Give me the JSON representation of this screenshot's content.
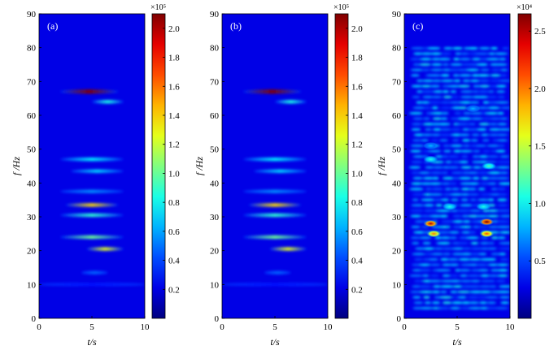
{
  "chart_data": [
    {
      "type": "heatmap",
      "panel_label": "(a)",
      "xlabel": "t/s",
      "ylabel": "f /Hz",
      "xlim": [
        0,
        10
      ],
      "ylim": [
        0,
        90
      ],
      "xticks": [
        "0",
        "5",
        "10"
      ],
      "yticks": [
        "0",
        "10",
        "20",
        "30",
        "40",
        "50",
        "60",
        "70",
        "80",
        "90"
      ],
      "colormap": "jet",
      "colorbar": {
        "multiplier": "×10⁵",
        "ticks": [
          "0.2",
          "0.4",
          "0.6",
          "0.8",
          "1.0",
          "1.2",
          "1.4",
          "1.6",
          "1.8",
          "2.0"
        ],
        "range": [
          0,
          2.1
        ]
      },
      "ridges": [
        {
          "freq": 10,
          "t_start": 0,
          "t_end": 10,
          "level": 0.14
        },
        {
          "freq": 13.5,
          "t_start": 4,
          "t_end": 6.5,
          "level": 0.22
        },
        {
          "freq": 20.5,
          "t_start": 4.5,
          "t_end": 8,
          "level": 0.6
        },
        {
          "freq": 24,
          "t_start": 2,
          "t_end": 8,
          "level": 0.48
        },
        {
          "freq": 30.5,
          "t_start": 2,
          "t_end": 8,
          "level": 0.42
        },
        {
          "freq": 33.5,
          "t_start": 2.5,
          "t_end": 7.5,
          "level": 0.66
        },
        {
          "freq": 37.5,
          "t_start": 2,
          "t_end": 8,
          "level": 0.26
        },
        {
          "freq": 43.5,
          "t_start": 3,
          "t_end": 8,
          "level": 0.33
        },
        {
          "freq": 47,
          "t_start": 2,
          "t_end": 8,
          "level": 0.36
        },
        {
          "freq": 64,
          "t_start": 5,
          "t_end": 8,
          "level": 0.4
        },
        {
          "freq": 67,
          "t_start": 2,
          "t_end": 7.5,
          "level": 1.0
        }
      ]
    },
    {
      "type": "heatmap",
      "panel_label": "(b)",
      "xlabel": "t/s",
      "ylabel": "f /Hz",
      "xlim": [
        0,
        10
      ],
      "ylim": [
        0,
        90
      ],
      "xticks": [
        "0",
        "5",
        "10"
      ],
      "yticks": [
        "0",
        "10",
        "20",
        "30",
        "40",
        "50",
        "60",
        "70",
        "80",
        "90"
      ],
      "colormap": "jet",
      "colorbar": {
        "multiplier": "×10⁵",
        "ticks": [
          "0.2",
          "0.4",
          "0.6",
          "0.8",
          "1.0",
          "1.2",
          "1.4",
          "1.6",
          "1.8",
          "2.0"
        ],
        "range": [
          0,
          2.1
        ]
      },
      "ridges": [
        {
          "freq": 10,
          "t_start": 0,
          "t_end": 10,
          "level": 0.14
        },
        {
          "freq": 13.5,
          "t_start": 4,
          "t_end": 6.5,
          "level": 0.22
        },
        {
          "freq": 20.5,
          "t_start": 4.5,
          "t_end": 8,
          "level": 0.6
        },
        {
          "freq": 24,
          "t_start": 2,
          "t_end": 8,
          "level": 0.48
        },
        {
          "freq": 30.5,
          "t_start": 2,
          "t_end": 8,
          "level": 0.42
        },
        {
          "freq": 33.5,
          "t_start": 2.5,
          "t_end": 7.5,
          "level": 0.66
        },
        {
          "freq": 37.5,
          "t_start": 2,
          "t_end": 8,
          "level": 0.26
        },
        {
          "freq": 43.5,
          "t_start": 3,
          "t_end": 8,
          "level": 0.33
        },
        {
          "freq": 47,
          "t_start": 2,
          "t_end": 8,
          "level": 0.36
        },
        {
          "freq": 64,
          "t_start": 5,
          "t_end": 8,
          "level": 0.4
        },
        {
          "freq": 67,
          "t_start": 2,
          "t_end": 7.5,
          "level": 1.0
        }
      ]
    },
    {
      "type": "heatmap",
      "panel_label": "(c)",
      "xlabel": "t/s",
      "ylabel": "f /Hz",
      "xlim": [
        0,
        10
      ],
      "ylim": [
        0,
        90
      ],
      "xticks": [
        "0",
        "5",
        "10"
      ],
      "yticks": [
        "0",
        "10",
        "20",
        "30",
        "40",
        "50",
        "60",
        "70",
        "80",
        "90"
      ],
      "colormap": "jet",
      "colorbar": {
        "multiplier": "×10⁴",
        "ticks": [
          "0.5",
          "1.0",
          "1.5",
          "2.0",
          "2.5"
        ],
        "range": [
          0,
          2.65
        ]
      },
      "active_region": {
        "t_range": [
          1,
          9.5
        ],
        "f_range": [
          3,
          80
        ]
      },
      "hotspots": [
        {
          "t": 2.5,
          "f": 28,
          "level": 0.95
        },
        {
          "t": 2.8,
          "f": 25,
          "level": 0.75
        },
        {
          "t": 7.8,
          "f": 28.5,
          "level": 1.0
        },
        {
          "t": 7.8,
          "f": 25,
          "level": 0.8
        },
        {
          "t": 4.3,
          "f": 33,
          "level": 0.4
        },
        {
          "t": 7.5,
          "f": 33,
          "level": 0.4
        },
        {
          "t": 8.0,
          "f": 45,
          "level": 0.45
        },
        {
          "t": 2.5,
          "f": 47,
          "level": 0.4
        },
        {
          "t": 6.5,
          "f": 62,
          "level": 0.3
        },
        {
          "t": 2.5,
          "f": 51,
          "level": 0.3
        }
      ]
    }
  ]
}
